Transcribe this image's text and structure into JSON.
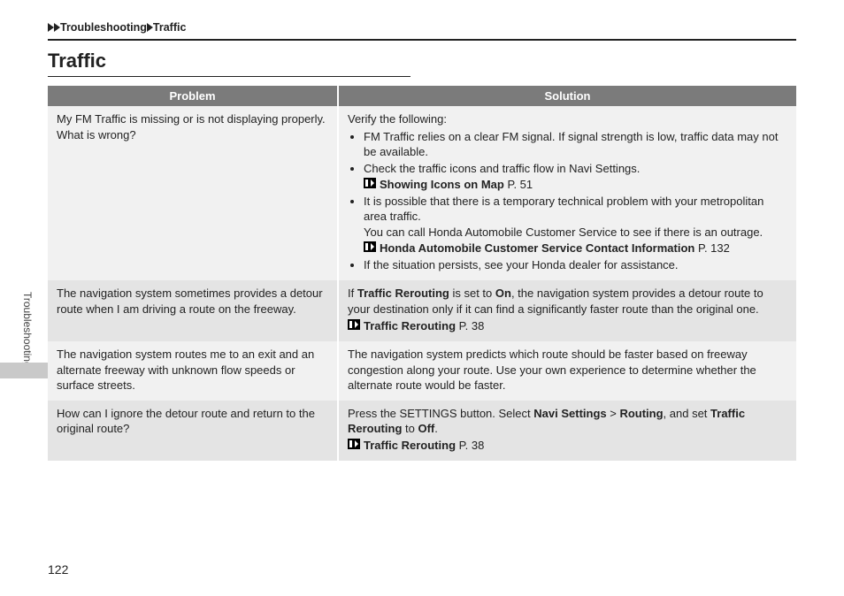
{
  "breadcrumb": {
    "seg1": "Troubleshooting",
    "seg2": "Traffic"
  },
  "title": "Traffic",
  "side_label": "Troubleshooting",
  "page_number": "122",
  "table": {
    "headers": {
      "problem": "Problem",
      "solution": "Solution"
    },
    "rows": [
      {
        "problem": "My FM Traffic is missing or is not displaying properly. What is wrong?",
        "solution": {
          "lead": "Verify the following:",
          "bullets": [
            {
              "text": "FM Traffic relies on a clear FM signal. If signal strength is low, traffic data may not be available."
            },
            {
              "text": "Check the traffic icons and traffic flow in Navi Settings.",
              "ref": {
                "title": "Showing Icons on Map",
                "page": "P. 51"
              }
            },
            {
              "text": "It is possible that there is a temporary technical problem with your metropolitan area traffic.",
              "sub": "You can call Honda Automobile Customer Service to see if there is an outrage.",
              "ref": {
                "title": "Honda Automobile Customer Service Contact Information",
                "page": "P. 132"
              }
            },
            {
              "text": "If the situation persists, see your Honda dealer for assistance."
            }
          ]
        }
      },
      {
        "problem": "The navigation system sometimes provides a detour route when I am driving a route on the freeway.",
        "solution": {
          "rich": [
            {
              "t": "If "
            },
            {
              "t": "Traffic Rerouting",
              "b": true
            },
            {
              "t": " is set to "
            },
            {
              "t": "On",
              "b": true
            },
            {
              "t": ", the navigation system provides a detour route to your destination only if it can find a significantly faster route than the original one."
            }
          ],
          "ref": {
            "title": "Traffic Rerouting",
            "page": "P. 38"
          }
        }
      },
      {
        "problem": "The navigation system routes me to an exit and an alternate freeway with unknown flow speeds or surface streets.",
        "solution": {
          "plain": "The navigation system predicts which route should be faster based on freeway congestion along your route. Use your own experience to determine whether the alternate route would be faster."
        }
      },
      {
        "problem": "How can I ignore the detour route and return to the original route?",
        "solution": {
          "rich": [
            {
              "t": "Press the SETTINGS button. Select "
            },
            {
              "t": "Navi Settings",
              "b": true
            },
            {
              "t": " > "
            },
            {
              "t": "Routing",
              "b": true
            },
            {
              "t": ", and set "
            },
            {
              "t": "Traffic Rerouting",
              "b": true
            },
            {
              "t": " to "
            },
            {
              "t": "Off",
              "b": true
            },
            {
              "t": "."
            }
          ],
          "ref": {
            "title": "Traffic Rerouting",
            "page": "P. 38"
          }
        }
      }
    ]
  },
  "colors": {
    "header_bg": "#7b7b7b",
    "header_fg": "#ffffff",
    "row_odd": "#f1f1f1",
    "row_even": "#e4e4e4",
    "text": "#222222"
  }
}
